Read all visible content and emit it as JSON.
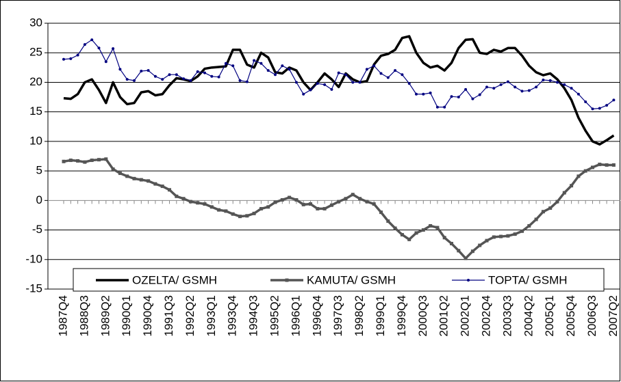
{
  "chart_data": {
    "type": "line",
    "categories": [
      "1987Q4",
      null,
      null,
      "1988Q3",
      null,
      null,
      "1989Q2",
      null,
      null,
      "1990Q1",
      null,
      null,
      "1990Q4",
      null,
      null,
      "1991Q3",
      null,
      null,
      "1992Q2",
      null,
      null,
      "1993Q1",
      null,
      null,
      "1993Q4",
      null,
      null,
      "1994Q3",
      null,
      null,
      "1995Q2",
      null,
      null,
      "1996Q1",
      null,
      null,
      "1996Q4",
      null,
      null,
      "1997Q3",
      null,
      null,
      "1998Q2",
      null,
      null,
      "1999Q1",
      null,
      null,
      "1999Q4",
      null,
      null,
      "2000Q3",
      null,
      null,
      "2001Q2",
      null,
      null,
      "2002Q1",
      null,
      null,
      "2002Q4",
      null,
      null,
      "2003Q3",
      null,
      null,
      "2004Q2",
      null,
      null,
      "2005Q1",
      null,
      null,
      "2005Q4",
      null,
      null,
      "2006Q3",
      null,
      null,
      "2007Q2"
    ],
    "series": [
      {
        "name": "OZELTA/ GSMH",
        "color": "#000000",
        "values": [
          17.3,
          17.2,
          18.0,
          20.0,
          20.5,
          18.7,
          16.5,
          20.0,
          17.5,
          16.3,
          16.5,
          18.3,
          18.5,
          17.8,
          18.0,
          19.5,
          20.7,
          20.5,
          20.2,
          21.0,
          22.3,
          22.5,
          22.6,
          22.7,
          25.5,
          25.5,
          23.0,
          22.5,
          25.0,
          24.2,
          21.7,
          21.5,
          22.5,
          22.0,
          20.0,
          18.7,
          20.0,
          21.5,
          20.5,
          19.2,
          21.5,
          20.5,
          20.0,
          20.2,
          23.0,
          24.5,
          24.8,
          25.5,
          27.5,
          27.8,
          25.0,
          23.3,
          22.5,
          22.8,
          22.0,
          23.3,
          25.8,
          27.2,
          27.3,
          25.0,
          24.8,
          25.5,
          25.2,
          25.8,
          25.8,
          24.5,
          22.8,
          21.7,
          21.2,
          21.5,
          20.5,
          19.0,
          17.0,
          14.0,
          11.8,
          10.0,
          9.5,
          10.2,
          11.0
        ]
      },
      {
        "name": "KAMUTA/ GSMH",
        "color": "#555555",
        "values": [
          6.6,
          6.8,
          6.7,
          6.5,
          6.8,
          6.9,
          7.0,
          5.3,
          4.6,
          4.1,
          3.7,
          3.5,
          3.3,
          2.8,
          2.4,
          1.8,
          0.7,
          0.3,
          -0.2,
          -0.4,
          -0.6,
          -1.1,
          -1.6,
          -1.8,
          -2.3,
          -2.7,
          -2.6,
          -2.2,
          -1.4,
          -1.1,
          -0.3,
          0.1,
          0.5,
          0.1,
          -0.7,
          -0.6,
          -1.4,
          -1.4,
          -0.8,
          -0.2,
          0.3,
          1.0,
          0.3,
          -0.2,
          -0.6,
          -2.0,
          -3.5,
          -4.7,
          -5.8,
          -6.6,
          -5.5,
          -5.0,
          -4.3,
          -4.6,
          -6.3,
          -7.3,
          -8.5,
          -9.8,
          -8.6,
          -7.6,
          -6.8,
          -6.2,
          -6.1,
          -6.0,
          -5.7,
          -5.2,
          -4.3,
          -3.2,
          -1.9,
          -1.3,
          -0.2,
          1.3,
          2.5,
          4.1,
          5.0,
          5.6,
          6.1,
          6.0,
          6.0
        ]
      },
      {
        "name": "TOPTA/ GSMH",
        "color": "#000080",
        "values": [
          23.9,
          24.0,
          24.6,
          26.4,
          27.2,
          25.8,
          23.5,
          25.7,
          22.2,
          20.5,
          20.3,
          21.9,
          22.0,
          21.0,
          20.5,
          21.3,
          21.3,
          20.6,
          20.3,
          21.8,
          21.6,
          21.0,
          20.9,
          23.2,
          22.8,
          20.3,
          20.1,
          23.7,
          23.2,
          22.0,
          21.3,
          22.8,
          22.2,
          20.0,
          18.0,
          18.7,
          19.8,
          19.6,
          18.8,
          21.6,
          21.3,
          20.0,
          20.0,
          22.2,
          22.8,
          21.5,
          20.8,
          22.0,
          21.3,
          19.8,
          18.0,
          18.0,
          18.2,
          15.8,
          15.8,
          17.6,
          17.5,
          18.8,
          17.2,
          17.9,
          19.2,
          19.0,
          19.6,
          20.1,
          19.2,
          18.5,
          18.6,
          19.2,
          20.4,
          20.3,
          20.0,
          19.6,
          19.0,
          18.0,
          16.7,
          15.5,
          15.6,
          16.1,
          17.0
        ]
      }
    ],
    "ylim": [
      -15,
      30
    ],
    "yticks": [
      -15,
      -10,
      -5,
      0,
      5,
      10,
      15,
      20,
      25,
      30
    ],
    "grid": true,
    "legend": "bottom"
  }
}
